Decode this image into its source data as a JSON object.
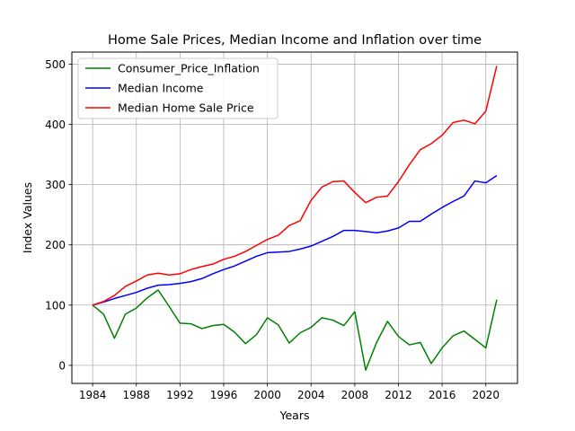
{
  "chart_data": {
    "type": "line",
    "title": "Home Sale Prices, Median Income and Inflation over time",
    "xlabel": "Years",
    "ylabel": "Index Values",
    "xlim": [
      1982.1,
      2022.9
    ],
    "ylim": [
      -30,
      520
    ],
    "xticks": [
      1984,
      1988,
      1992,
      1996,
      2000,
      2004,
      2008,
      2012,
      2016,
      2020
    ],
    "yticks": [
      0,
      100,
      200,
      300,
      400,
      500
    ],
    "grid": true,
    "legend_position": "top-left",
    "x": [
      1984,
      1985,
      1986,
      1987,
      1988,
      1989,
      1990,
      1991,
      1992,
      1993,
      1994,
      1995,
      1996,
      1997,
      1998,
      1999,
      2000,
      2001,
      2002,
      2003,
      2004,
      2005,
      2006,
      2007,
      2008,
      2009,
      2010,
      2011,
      2012,
      2013,
      2014,
      2015,
      2016,
      2017,
      2018,
      2019,
      2020,
      2021
    ],
    "series": [
      {
        "name": "Consumer_Price_Inflation",
        "color": "#008000",
        "values": [
          100,
          85,
          45,
          85,
          95,
          112,
          125,
          98,
          70,
          69,
          61,
          66,
          68,
          55,
          36,
          51,
          79,
          67,
          37,
          54,
          63,
          79,
          75,
          66,
          89,
          -8,
          38,
          73,
          48,
          34,
          38,
          3,
          29,
          49,
          57,
          43,
          29,
          109
        ]
      },
      {
        "name": "Median Income",
        "color": "#0000ff",
        "values": [
          100,
          105,
          111,
          116,
          121,
          128,
          133,
          134,
          136,
          139,
          144,
          152,
          159,
          165,
          173,
          181,
          187,
          188,
          189,
          193,
          198,
          206,
          214,
          224,
          224,
          222,
          220,
          223,
          228,
          239,
          239,
          251,
          262,
          272,
          281,
          306,
          303,
          315
        ]
      },
      {
        "name": "Median Home Sale Price",
        "color": "#ff0000",
        "values": [
          100,
          106,
          116,
          131,
          140,
          150,
          153,
          150,
          152,
          159,
          164,
          168,
          176,
          181,
          189,
          199,
          209,
          216,
          232,
          240,
          274,
          296,
          305,
          306,
          287,
          270,
          279,
          281,
          305,
          333,
          358,
          368,
          382,
          403,
          407,
          401,
          422,
          497
        ]
      }
    ]
  }
}
